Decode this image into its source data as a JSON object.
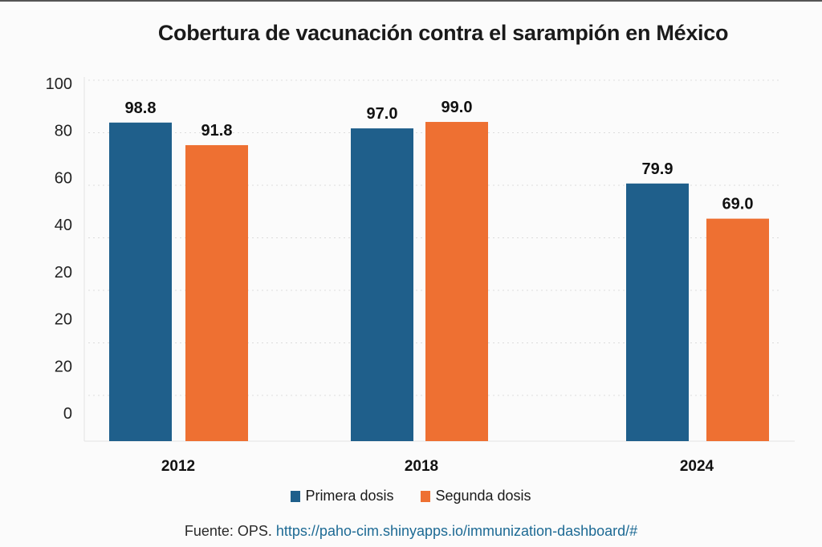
{
  "chart_data": {
    "type": "bar",
    "title": "Cobertura de vacunación contra el sarampión en México",
    "categories": [
      "2012",
      "2018",
      "2024"
    ],
    "series": [
      {
        "name": "Primera dosis",
        "values": [
          98.8,
          97.0,
          79.9
        ],
        "labels": [
          "98.8",
          "97.0",
          "79.9"
        ],
        "color": "#1f5f8b"
      },
      {
        "name": "Segunda dosis",
        "values": [
          91.8,
          99.0,
          69.0
        ],
        "labels": [
          "91.8",
          "99.0",
          "69.0"
        ],
        "color": "#ee7032"
      }
    ],
    "y_tick_labels": [
      "100",
      "80",
      "60",
      "40",
      "20",
      "20",
      "20",
      "0"
    ],
    "ylim": [
      0,
      100
    ],
    "grid": true,
    "legend": "bottom"
  },
  "source": {
    "prefix": "Fuente: OPS.",
    "link": "https://paho-cim.shinyapps.io/immunization-dashboard/#"
  }
}
